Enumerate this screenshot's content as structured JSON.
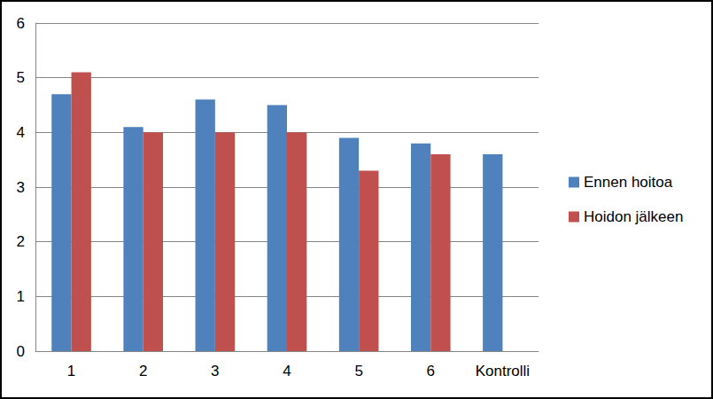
{
  "chart_data": {
    "type": "bar",
    "categories": [
      "1",
      "2",
      "3",
      "4",
      "5",
      "6",
      "Kontrolli"
    ],
    "series": [
      {
        "name": "Ennen hoitoa",
        "color": "#4f81bd",
        "values": [
          4.7,
          4.1,
          4.6,
          4.5,
          3.9,
          3.8,
          3.6
        ]
      },
      {
        "name": "Hoidon jälkeen",
        "color": "#c0504d",
        "values": [
          5.1,
          4.0,
          4.0,
          4.0,
          3.3,
          3.6,
          null
        ]
      }
    ],
    "ylim": [
      0,
      6
    ],
    "yticks": [
      0,
      1,
      2,
      3,
      4,
      5,
      6
    ],
    "grid": true,
    "legend": "right"
  }
}
